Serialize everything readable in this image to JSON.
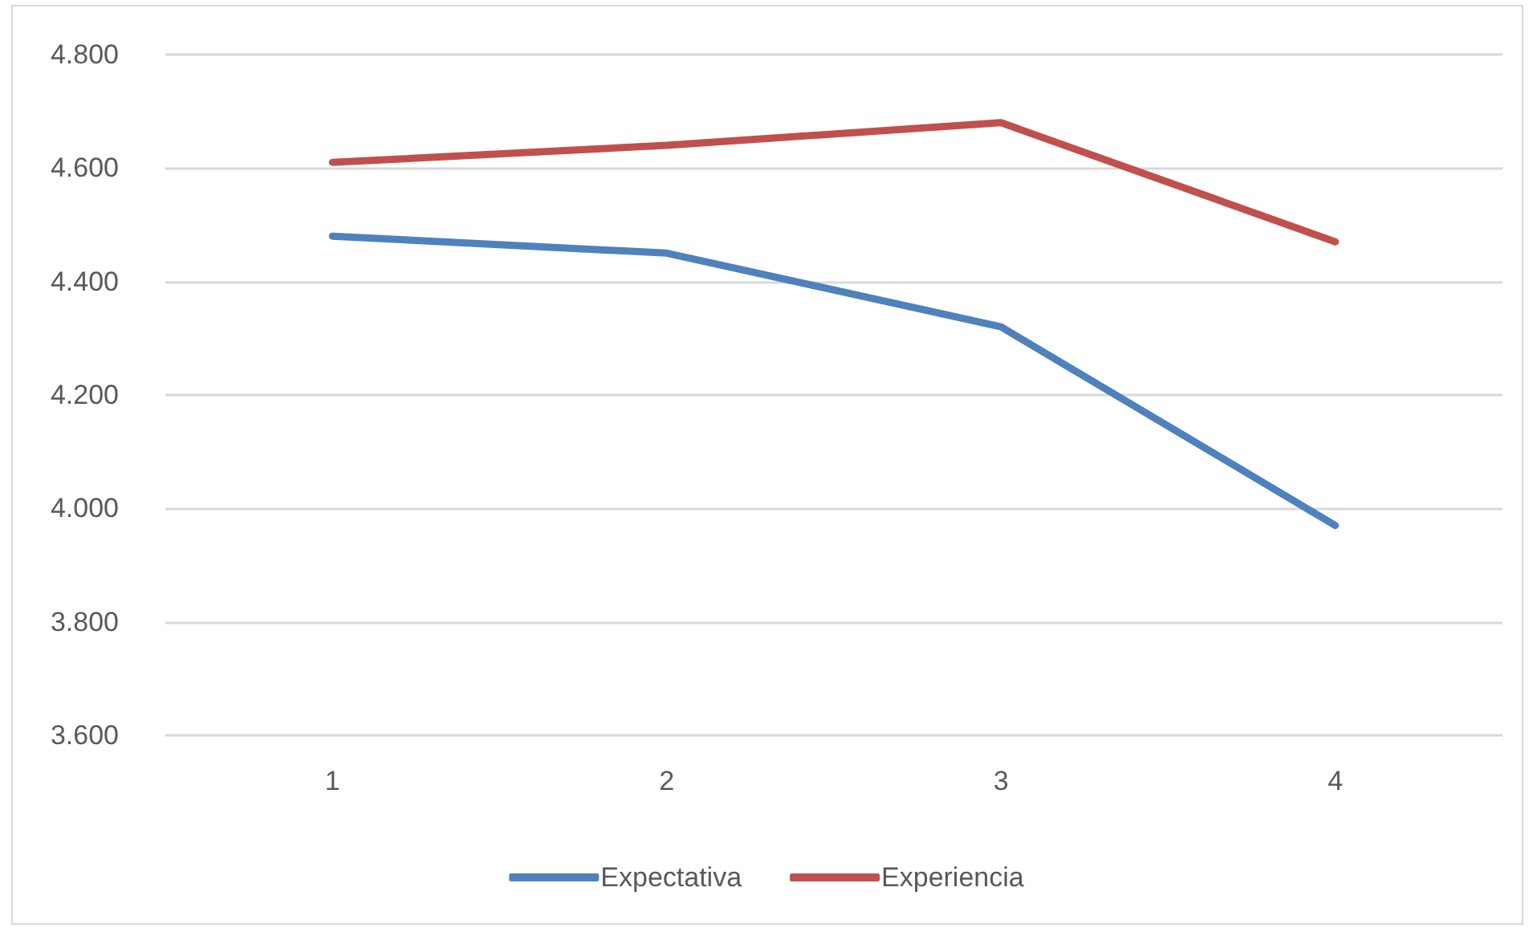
{
  "chart_data": {
    "type": "line",
    "categories": [
      "1",
      "2",
      "3",
      "4"
    ],
    "series": [
      {
        "name": "Expectativa",
        "color": "#4f81bd",
        "values": [
          4.48,
          4.45,
          4.32,
          3.97
        ]
      },
      {
        "name": "Experiencia",
        "color": "#c0504d",
        "values": [
          4.61,
          4.64,
          4.68,
          4.47
        ]
      }
    ],
    "ylim": [
      3.6,
      4.8
    ],
    "yticks": [
      {
        "value": 3.6,
        "label": "3.600"
      },
      {
        "value": 3.8,
        "label": "3.800"
      },
      {
        "value": 4.0,
        "label": "4.000"
      },
      {
        "value": 4.2,
        "label": "4.200"
      },
      {
        "value": 4.4,
        "label": "4.400"
      },
      {
        "value": 4.6,
        "label": "4.600"
      },
      {
        "value": 4.8,
        "label": "4.800"
      }
    ],
    "grid": "y",
    "legend": "bottom",
    "marker": "none",
    "line_style": "solid"
  }
}
